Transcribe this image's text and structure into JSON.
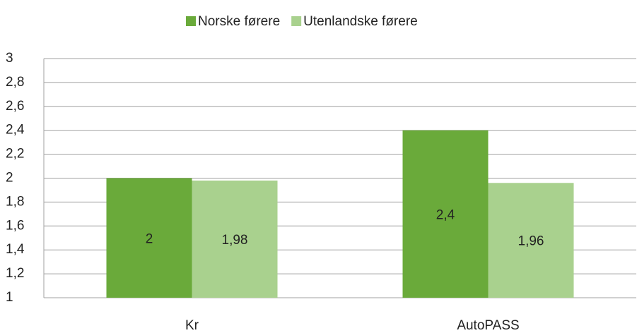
{
  "chart_data": {
    "type": "bar",
    "categories": [
      "Kr",
      "AutoPASS"
    ],
    "series": [
      {
        "name": "Norske førere",
        "color": "#6aaa3a",
        "values": [
          2,
          2.4
        ],
        "value_labels": [
          "2",
          "2,4"
        ]
      },
      {
        "name": "Utenlandske førere",
        "color": "#a9d18e",
        "values": [
          1.98,
          1.96
        ],
        "value_labels": [
          "1,98",
          "1,96"
        ]
      }
    ],
    "ylim": [
      1,
      3
    ],
    "yticks": [
      1,
      {
        "value": 1.2,
        "label": "1,2"
      },
      {
        "value": 1.4,
        "label": "1,4"
      },
      {
        "value": 1.6,
        "label": "1,6"
      },
      {
        "value": 1.8,
        "label": "1,8"
      },
      2,
      {
        "value": 2.2,
        "label": "2,2"
      },
      {
        "value": 2.4,
        "label": "2,4"
      },
      {
        "value": 2.6,
        "label": "2,6"
      },
      {
        "value": 2.8,
        "label": "2,8"
      },
      3
    ],
    "grid": true,
    "legend": "top"
  }
}
